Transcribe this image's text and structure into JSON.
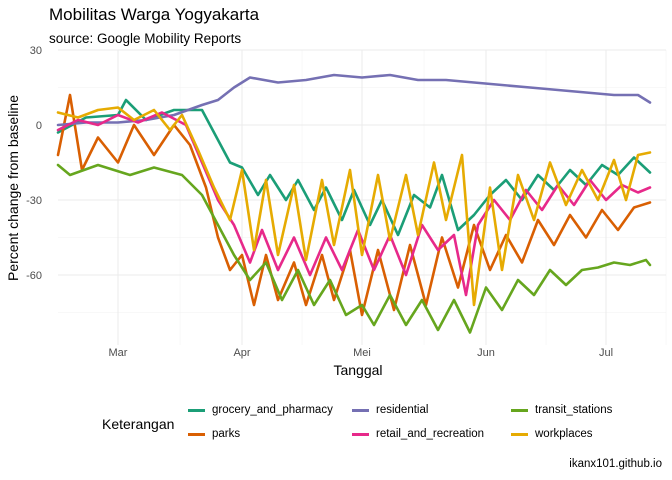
{
  "header": {
    "title": "Mobilitas Warga Yogyakarta",
    "subtitle": "source: Google Mobility Reports"
  },
  "caption": "ikanx101.github.io",
  "chart_data": {
    "type": "line",
    "xlabel": "Tanggal",
    "ylabel": "Percent change from baseline",
    "xlim": [
      "2020-02-15",
      "2020-07-16"
    ],
    "ylim": [
      -88,
      30
    ],
    "x_ticks": [
      {
        "date": "2020-03-01",
        "label": "Mar"
      },
      {
        "date": "2020-04-01",
        "label": "Apr"
      },
      {
        "date": "2020-05-01",
        "label": "Mei"
      },
      {
        "date": "2020-06-01",
        "label": "Jun"
      },
      {
        "date": "2020-07-01",
        "label": "Jul"
      }
    ],
    "y_ticks": [
      30,
      0,
      -30,
      -60
    ],
    "grid": true,
    "legend_position": "bottom",
    "legend_title": "Keterangan",
    "series": [
      {
        "name": "grocery_and_pharmacy",
        "color": "#1b9e77",
        "points": [
          [
            "2020-02-15",
            -3
          ],
          [
            "2020-02-22",
            3
          ],
          [
            "2020-03-01",
            4
          ],
          [
            "2020-03-03",
            10
          ],
          [
            "2020-03-08",
            2
          ],
          [
            "2020-03-15",
            6
          ],
          [
            "2020-03-22",
            6
          ],
          [
            "2020-03-25",
            -3
          ],
          [
            "2020-03-29",
            -15
          ],
          [
            "2020-04-01",
            -17
          ],
          [
            "2020-04-05",
            -28
          ],
          [
            "2020-04-08",
            -20
          ],
          [
            "2020-04-12",
            -30
          ],
          [
            "2020-04-15",
            -22
          ],
          [
            "2020-04-19",
            -34
          ],
          [
            "2020-04-22",
            -25
          ],
          [
            "2020-04-26",
            -38
          ],
          [
            "2020-04-29",
            -26
          ],
          [
            "2020-05-03",
            -40
          ],
          [
            "2020-05-06",
            -30
          ],
          [
            "2020-05-10",
            -44
          ],
          [
            "2020-05-14",
            -28
          ],
          [
            "2020-05-18",
            -33
          ],
          [
            "2020-05-21",
            -20
          ],
          [
            "2020-05-25",
            -42
          ],
          [
            "2020-05-29",
            -36
          ],
          [
            "2020-06-02",
            -28
          ],
          [
            "2020-06-06",
            -22
          ],
          [
            "2020-06-10",
            -30
          ],
          [
            "2020-06-14",
            -20
          ],
          [
            "2020-06-18",
            -26
          ],
          [
            "2020-06-22",
            -18
          ],
          [
            "2020-06-26",
            -24
          ],
          [
            "2020-06-30",
            -16
          ],
          [
            "2020-07-04",
            -20
          ],
          [
            "2020-07-08",
            -13
          ],
          [
            "2020-07-12",
            -19
          ]
        ]
      },
      {
        "name": "parks",
        "color": "#d95f02",
        "points": [
          [
            "2020-02-15",
            -12
          ],
          [
            "2020-02-18",
            12
          ],
          [
            "2020-02-21",
            -18
          ],
          [
            "2020-02-25",
            -5
          ],
          [
            "2020-03-01",
            -15
          ],
          [
            "2020-03-05",
            0
          ],
          [
            "2020-03-10",
            -12
          ],
          [
            "2020-03-15",
            0
          ],
          [
            "2020-03-19",
            -8
          ],
          [
            "2020-03-23",
            -25
          ],
          [
            "2020-03-26",
            -45
          ],
          [
            "2020-03-29",
            -58
          ],
          [
            "2020-04-01",
            -52
          ],
          [
            "2020-04-04",
            -72
          ],
          [
            "2020-04-07",
            -52
          ],
          [
            "2020-04-10",
            -70
          ],
          [
            "2020-04-14",
            -55
          ],
          [
            "2020-04-17",
            -72
          ],
          [
            "2020-04-21",
            -52
          ],
          [
            "2020-04-24",
            -70
          ],
          [
            "2020-04-28",
            -50
          ],
          [
            "2020-05-01",
            -76
          ],
          [
            "2020-05-05",
            -50
          ],
          [
            "2020-05-09",
            -74
          ],
          [
            "2020-05-13",
            -48
          ],
          [
            "2020-05-17",
            -72
          ],
          [
            "2020-05-21",
            -45
          ],
          [
            "2020-05-25",
            -65
          ],
          [
            "2020-05-29",
            -40
          ],
          [
            "2020-06-02",
            -58
          ],
          [
            "2020-06-06",
            -44
          ],
          [
            "2020-06-10",
            -55
          ],
          [
            "2020-06-14",
            -38
          ],
          [
            "2020-06-18",
            -48
          ],
          [
            "2020-06-22",
            -36
          ],
          [
            "2020-06-26",
            -45
          ],
          [
            "2020-06-30",
            -34
          ],
          [
            "2020-07-04",
            -42
          ],
          [
            "2020-07-08",
            -33
          ],
          [
            "2020-07-12",
            -31
          ]
        ]
      },
      {
        "name": "residential",
        "color": "#7570b3",
        "points": [
          [
            "2020-02-15",
            0
          ],
          [
            "2020-02-22",
            1
          ],
          [
            "2020-03-01",
            1
          ],
          [
            "2020-03-08",
            2
          ],
          [
            "2020-03-15",
            4
          ],
          [
            "2020-03-22",
            8
          ],
          [
            "2020-03-26",
            10
          ],
          [
            "2020-03-30",
            15
          ],
          [
            "2020-04-03",
            19
          ],
          [
            "2020-04-10",
            17
          ],
          [
            "2020-04-17",
            18
          ],
          [
            "2020-04-24",
            20
          ],
          [
            "2020-05-01",
            19
          ],
          [
            "2020-05-08",
            20
          ],
          [
            "2020-05-15",
            18
          ],
          [
            "2020-05-22",
            18
          ],
          [
            "2020-05-29",
            17
          ],
          [
            "2020-06-05",
            16
          ],
          [
            "2020-06-12",
            15
          ],
          [
            "2020-06-19",
            14
          ],
          [
            "2020-06-26",
            13
          ],
          [
            "2020-07-03",
            12
          ],
          [
            "2020-07-09",
            12
          ],
          [
            "2020-07-12",
            9
          ]
        ]
      },
      {
        "name": "retail_and_recreation",
        "color": "#e7298a",
        "points": [
          [
            "2020-02-15",
            -2
          ],
          [
            "2020-02-20",
            2
          ],
          [
            "2020-02-25",
            0
          ],
          [
            "2020-03-01",
            4
          ],
          [
            "2020-03-06",
            1
          ],
          [
            "2020-03-12",
            5
          ],
          [
            "2020-03-18",
            0
          ],
          [
            "2020-03-22",
            -15
          ],
          [
            "2020-03-26",
            -30
          ],
          [
            "2020-03-30",
            -40
          ],
          [
            "2020-04-03",
            -55
          ],
          [
            "2020-04-06",
            -42
          ],
          [
            "2020-04-10",
            -58
          ],
          [
            "2020-04-14",
            -45
          ],
          [
            "2020-04-18",
            -60
          ],
          [
            "2020-04-22",
            -45
          ],
          [
            "2020-04-26",
            -58
          ],
          [
            "2020-04-30",
            -42
          ],
          [
            "2020-05-04",
            -58
          ],
          [
            "2020-05-08",
            -44
          ],
          [
            "2020-05-12",
            -60
          ],
          [
            "2020-05-16",
            -40
          ],
          [
            "2020-05-20",
            -50
          ],
          [
            "2020-05-24",
            -44
          ],
          [
            "2020-05-27",
            -68
          ],
          [
            "2020-05-30",
            -40
          ],
          [
            "2020-06-03",
            -30
          ],
          [
            "2020-06-07",
            -38
          ],
          [
            "2020-06-11",
            -26
          ],
          [
            "2020-06-15",
            -34
          ],
          [
            "2020-06-19",
            -24
          ],
          [
            "2020-06-23",
            -32
          ],
          [
            "2020-06-27",
            -22
          ],
          [
            "2020-07-01",
            -30
          ],
          [
            "2020-07-05",
            -24
          ],
          [
            "2020-07-09",
            -27
          ],
          [
            "2020-07-12",
            -25
          ]
        ]
      },
      {
        "name": "transit_stations",
        "color": "#66a61e",
        "points": [
          [
            "2020-02-15",
            -16
          ],
          [
            "2020-02-18",
            -20
          ],
          [
            "2020-02-25",
            -16
          ],
          [
            "2020-03-04",
            -20
          ],
          [
            "2020-03-10",
            -17
          ],
          [
            "2020-03-17",
            -20
          ],
          [
            "2020-03-22",
            -28
          ],
          [
            "2020-03-26",
            -40
          ],
          [
            "2020-03-30",
            -52
          ],
          [
            "2020-04-03",
            -62
          ],
          [
            "2020-04-07",
            -55
          ],
          [
            "2020-04-11",
            -70
          ],
          [
            "2020-04-15",
            -58
          ],
          [
            "2020-04-19",
            -72
          ],
          [
            "2020-04-23",
            -62
          ],
          [
            "2020-04-27",
            -76
          ],
          [
            "2020-05-01",
            -72
          ],
          [
            "2020-05-04",
            -80
          ],
          [
            "2020-05-08",
            -68
          ],
          [
            "2020-05-12",
            -80
          ],
          [
            "2020-05-16",
            -70
          ],
          [
            "2020-05-20",
            -82
          ],
          [
            "2020-05-24",
            -70
          ],
          [
            "2020-05-28",
            -83
          ],
          [
            "2020-06-01",
            -65
          ],
          [
            "2020-06-05",
            -74
          ],
          [
            "2020-06-09",
            -62
          ],
          [
            "2020-06-13",
            -68
          ],
          [
            "2020-06-17",
            -58
          ],
          [
            "2020-06-21",
            -64
          ],
          [
            "2020-06-25",
            -58
          ],
          [
            "2020-06-29",
            -57
          ],
          [
            "2020-07-03",
            -55
          ],
          [
            "2020-07-07",
            -56
          ],
          [
            "2020-07-11",
            -54
          ],
          [
            "2020-07-12",
            -56
          ]
        ]
      },
      {
        "name": "workplaces",
        "color": "#e6ab02",
        "points": [
          [
            "2020-02-15",
            5
          ],
          [
            "2020-02-20",
            3
          ],
          [
            "2020-02-25",
            6
          ],
          [
            "2020-03-01",
            7
          ],
          [
            "2020-03-05",
            2
          ],
          [
            "2020-03-10",
            6
          ],
          [
            "2020-03-14",
            -2
          ],
          [
            "2020-03-17",
            4
          ],
          [
            "2020-03-21",
            -10
          ],
          [
            "2020-03-25",
            -25
          ],
          [
            "2020-03-29",
            -38
          ],
          [
            "2020-04-01",
            -18
          ],
          [
            "2020-04-04",
            -50
          ],
          [
            "2020-04-07",
            -22
          ],
          [
            "2020-04-10",
            -52
          ],
          [
            "2020-04-14",
            -24
          ],
          [
            "2020-04-17",
            -54
          ],
          [
            "2020-04-21",
            -22
          ],
          [
            "2020-04-24",
            -48
          ],
          [
            "2020-04-28",
            -18
          ],
          [
            "2020-05-01",
            -52
          ],
          [
            "2020-05-05",
            -20
          ],
          [
            "2020-05-08",
            -46
          ],
          [
            "2020-05-12",
            -20
          ],
          [
            "2020-05-15",
            -44
          ],
          [
            "2020-05-19",
            -15
          ],
          [
            "2020-05-22",
            -38
          ],
          [
            "2020-05-26",
            -12
          ],
          [
            "2020-05-29",
            -72
          ],
          [
            "2020-06-02",
            -25
          ],
          [
            "2020-06-05",
            -58
          ],
          [
            "2020-06-09",
            -20
          ],
          [
            "2020-06-13",
            -38
          ],
          [
            "2020-06-17",
            -15
          ],
          [
            "2020-06-21",
            -32
          ],
          [
            "2020-06-25",
            -18
          ],
          [
            "2020-06-29",
            -30
          ],
          [
            "2020-07-03",
            -14
          ],
          [
            "2020-07-06",
            -30
          ],
          [
            "2020-07-09",
            -12
          ],
          [
            "2020-07-12",
            -11
          ]
        ]
      }
    ]
  }
}
